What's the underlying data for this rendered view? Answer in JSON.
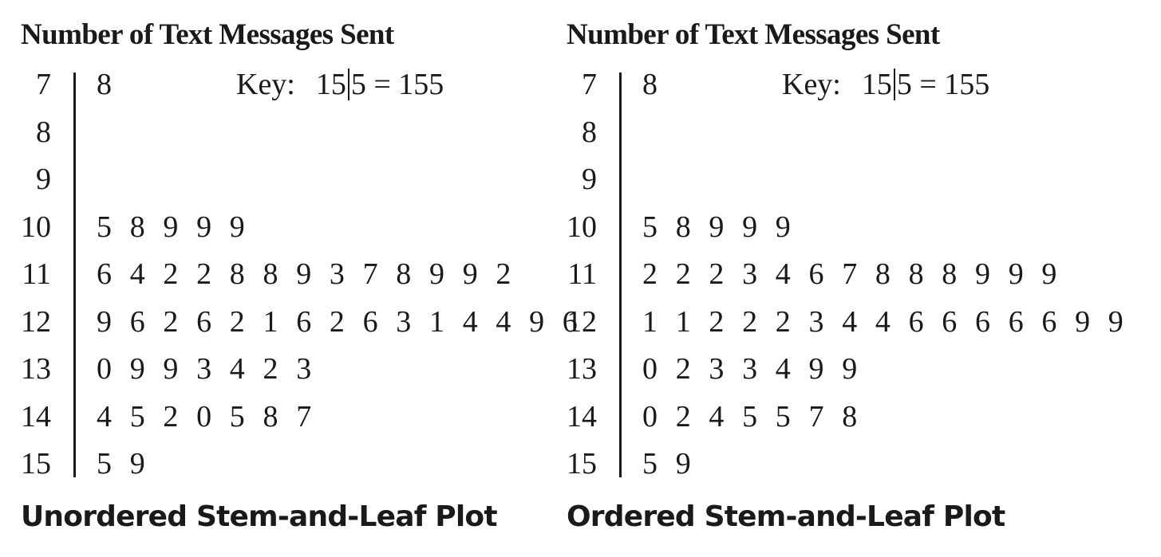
{
  "chart_data": [
    {
      "type": "table",
      "title": "Number of Text Messages Sent",
      "caption": "Unordered Stem-and-Leaf Plot",
      "key": {
        "label": "Key:",
        "stem": "15",
        "leaf": "5",
        "equals": "= 155"
      },
      "rows": [
        {
          "stem": "7",
          "leaves": "8"
        },
        {
          "stem": "8",
          "leaves": ""
        },
        {
          "stem": "9",
          "leaves": ""
        },
        {
          "stem": "10",
          "leaves": "5 8 9 9 9"
        },
        {
          "stem": "11",
          "leaves": "6 4 2 2 8 8 9 3 7 8 9 9 2"
        },
        {
          "stem": "12",
          "leaves": "9 6 2 6 2 1 6 2 6 3 1 4 4 9 6"
        },
        {
          "stem": "13",
          "leaves": "0 9 9 3 4 2 3"
        },
        {
          "stem": "14",
          "leaves": "4 5 2 0 5 8 7"
        },
        {
          "stem": "15",
          "leaves": "5 9"
        }
      ]
    },
    {
      "type": "table",
      "title": "Number of Text Messages Sent",
      "caption": "Ordered Stem-and-Leaf Plot",
      "key": {
        "label": "Key:",
        "stem": "15",
        "leaf": "5",
        "equals": "= 155"
      },
      "rows": [
        {
          "stem": "7",
          "leaves": "8"
        },
        {
          "stem": "8",
          "leaves": ""
        },
        {
          "stem": "9",
          "leaves": ""
        },
        {
          "stem": "10",
          "leaves": "5 8 9 9 9"
        },
        {
          "stem": "11",
          "leaves": "2 2 2 3 4 6 7 8 8 8 9 9 9"
        },
        {
          "stem": "12",
          "leaves": "1 1 2 2 2 3 4 4 6 6 6 6 6 9 9"
        },
        {
          "stem": "13",
          "leaves": "0 2 3 3 4 9 9"
        },
        {
          "stem": "14",
          "leaves": "0 2 4 5 5 7 8"
        },
        {
          "stem": "15",
          "leaves": "5 9"
        }
      ]
    }
  ]
}
